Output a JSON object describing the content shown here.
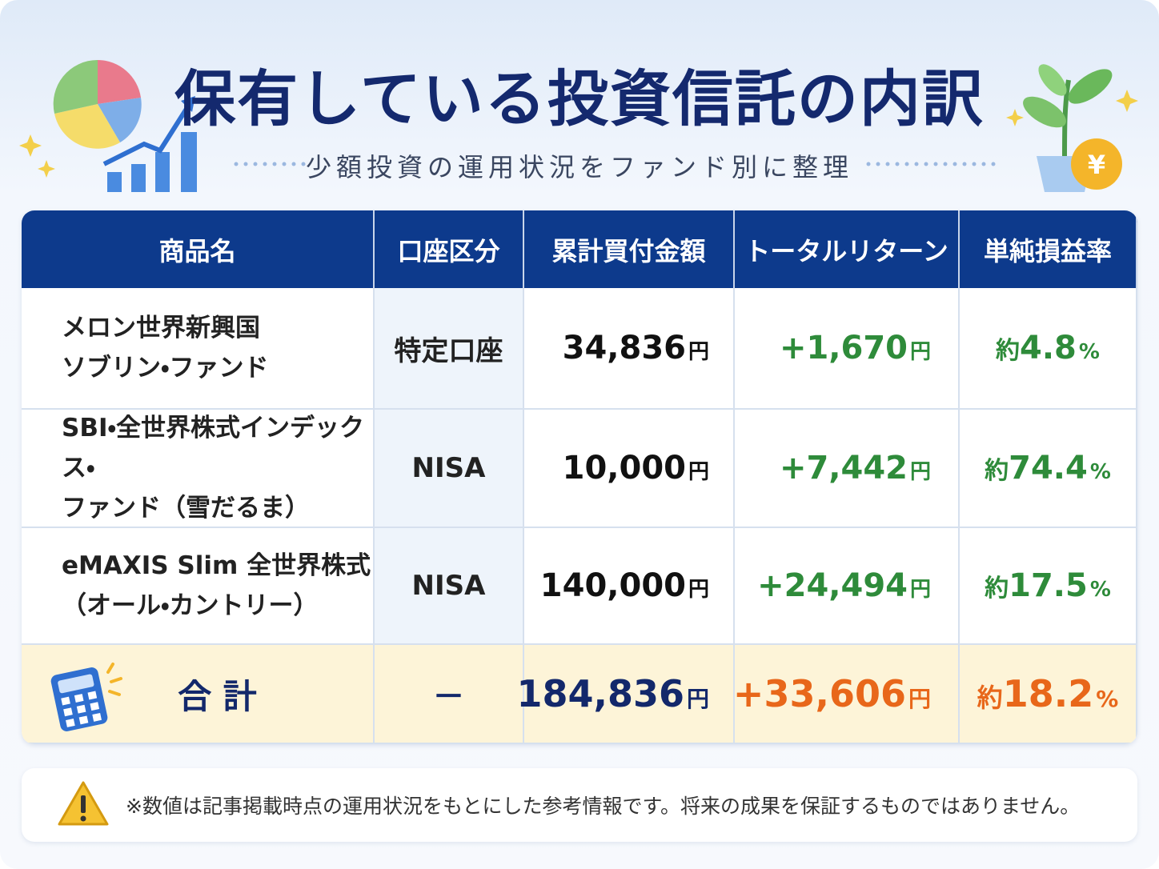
{
  "header": {
    "title": "保有している投資信託の内訳",
    "subtitle": "少額投資の運用状況をファンド別に整理"
  },
  "table": {
    "columns": [
      "商品名",
      "口座区分",
      "累計買付金額",
      "トータルリターン",
      "単純損益率"
    ],
    "rows": [
      {
        "name": [
          "メロン世界新興国",
          "ソブリン・ファンド"
        ],
        "account": "特定口座",
        "amount": {
          "value": "34,836",
          "unit": "円"
        },
        "return": {
          "value": "+1,670",
          "unit": "円"
        },
        "rate": {
          "prefix": "約",
          "value": "4.8",
          "unit": "%"
        }
      },
      {
        "name": [
          "SBI・全世界株式インデックス・",
          "ファンド（雪だるま）"
        ],
        "account": "NISA",
        "amount": {
          "value": "10,000",
          "unit": "円"
        },
        "return": {
          "value": "+7,442",
          "unit": "円"
        },
        "rate": {
          "prefix": "約",
          "value": "74.4",
          "unit": "%"
        }
      },
      {
        "name": [
          "eMAXIS Slim 全世界株式",
          "（オール・カントリー）"
        ],
        "account": "NISA",
        "amount": {
          "value": "140,000",
          "unit": "円"
        },
        "return": {
          "value": "+24,494",
          "unit": "円"
        },
        "rate": {
          "prefix": "約",
          "value": "17.5",
          "unit": "%"
        }
      }
    ],
    "total": {
      "label": "合 計",
      "account": "－",
      "amount": {
        "value": "184,836",
        "unit": "円"
      },
      "return": {
        "value": "+33,606",
        "unit": "円"
      },
      "rate": {
        "prefix": "約",
        "value": "18.2",
        "unit": "%"
      }
    }
  },
  "note": "※数値は記事掲載時点の運用状況をもとにした参考情報です。将来の成果を保証するものではありません。"
}
